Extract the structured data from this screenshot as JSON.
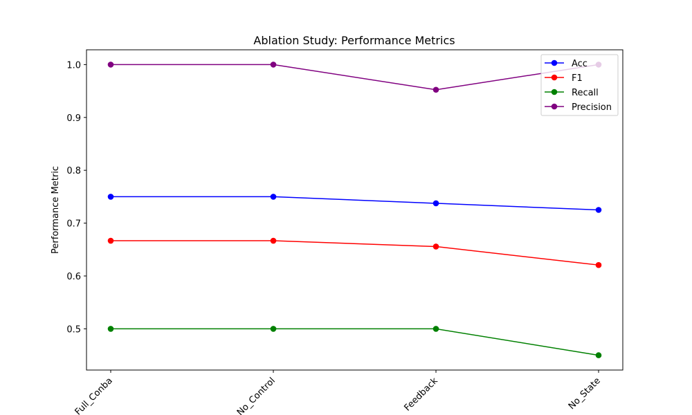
{
  "chart_data": {
    "type": "line",
    "title": "Ablation Study: Performance Metrics",
    "xlabel": "",
    "ylabel": "Performance Metric",
    "categories": [
      "Full_Conba",
      "No_Control",
      "Feedback",
      "No_State"
    ],
    "y_ticks": [
      "0.5",
      "0.6",
      "0.7",
      "0.8",
      "0.9",
      "1.0"
    ],
    "ylim": [
      0.422,
      1.028
    ],
    "grid": false,
    "legend_position": "upper right",
    "series": [
      {
        "name": "Acc",
        "color": "#0000ff",
        "values": [
          0.75,
          0.75,
          0.7375,
          0.725
        ]
      },
      {
        "name": "F1",
        "color": "#ff0000",
        "values": [
          0.6667,
          0.6667,
          0.6557,
          0.6207
        ]
      },
      {
        "name": "Recall",
        "color": "#008000",
        "values": [
          0.5,
          0.5,
          0.5,
          0.45
        ]
      },
      {
        "name": "Precision",
        "color": "#800080",
        "values": [
          1.0,
          1.0,
          0.9524,
          1.0
        ]
      }
    ]
  }
}
